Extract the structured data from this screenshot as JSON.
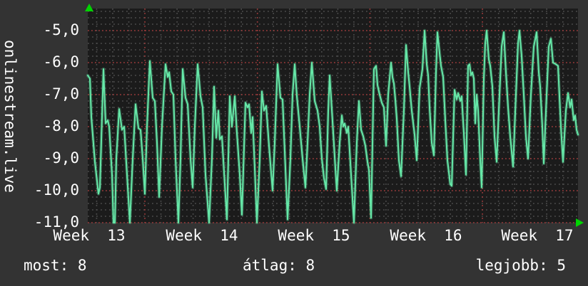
{
  "window": {
    "kind": "monitoring-graph",
    "bg_color": "#333333",
    "plot_bg_color": "#1b1b1b",
    "text_color": "#ffffff"
  },
  "vertical_axis_title": "onlinestream.live",
  "footer": {
    "current": "most: 8",
    "average": "átlag: 8",
    "best": "legjobb: 5"
  },
  "icons": {
    "y_axis_arrow": "up-arrow",
    "x_axis_arrow": "right-arrow",
    "arrow_color": "#00d400"
  },
  "chart_data": {
    "type": "line",
    "title": "onlinestream.live",
    "xlabel": "",
    "ylabel": "",
    "legend_position": "none",
    "grid": {
      "on": true,
      "minor_color": "#4e4e4e",
      "major_color": "#a03c3c"
    },
    "y_axis": {
      "tick_labels": [
        "-5,0",
        "-6,0",
        "-7,0",
        "-8,0",
        "-9,0",
        "-10,0",
        "-11,0"
      ],
      "tick_values": [
        -5,
        -6,
        -7,
        -8,
        -9,
        -10,
        -11
      ],
      "minor_step": 0.2,
      "range_top": -4.31,
      "range_bottom": -11.0
    },
    "x_axis": {
      "tick_labels": [
        "Week  13",
        "Week  14",
        "Week  15",
        "Week  16",
        "Week  17"
      ],
      "minor_grid": "daily",
      "major_grid": "weekly"
    },
    "series": [
      {
        "name": "onlinestream.live",
        "color": "#66e8a8",
        "x_unit": "screen-px (plot spans 123..810, one day ≈ 22.5px)",
        "y_unit": "plotted value (negated ms)",
        "points": [
          [
            123,
            -6.4
          ],
          [
            126,
            -6.5
          ],
          [
            128,
            -7.7
          ],
          [
            133,
            -9.1
          ],
          [
            138,
            -10.1
          ],
          [
            140,
            -9.9
          ],
          [
            145,
            -6.2
          ],
          [
            148,
            -7.9
          ],
          [
            151,
            -7.8
          ],
          [
            153,
            -8.0
          ],
          [
            157,
            -9.5
          ],
          [
            159,
            -11.0
          ],
          [
            161,
            -11.0
          ],
          [
            163,
            -9.0
          ],
          [
            167,
            -7.45
          ],
          [
            171,
            -8.1
          ],
          [
            174,
            -8.0
          ],
          [
            178,
            -9.5
          ],
          [
            182,
            -11.0
          ],
          [
            186,
            -9.0
          ],
          [
            190,
            -7.3
          ],
          [
            194,
            -8.05
          ],
          [
            197,
            -8.1
          ],
          [
            200,
            -9.0
          ],
          [
            203,
            -10.1
          ],
          [
            206,
            -8.0
          ],
          [
            210,
            -5.95
          ],
          [
            214,
            -7.1
          ],
          [
            217,
            -7.2
          ],
          [
            220,
            -8.5
          ],
          [
            223,
            -10.2
          ],
          [
            227,
            -8.0
          ],
          [
            232,
            -6.05
          ],
          [
            235,
            -6.45
          ],
          [
            237,
            -6.3
          ],
          [
            240,
            -6.9
          ],
          [
            243,
            -7.0
          ],
          [
            246,
            -9.0
          ],
          [
            250,
            -11.0
          ],
          [
            253,
            -9.0
          ],
          [
            256,
            -6.2
          ],
          [
            260,
            -7.1
          ],
          [
            263,
            -7.3
          ],
          [
            267,
            -9.0
          ],
          [
            270,
            -9.9
          ],
          [
            273,
            -8.0
          ],
          [
            277,
            -6.05
          ],
          [
            281,
            -7.05
          ],
          [
            284,
            -7.4
          ],
          [
            288,
            -9.5
          ],
          [
            293,
            -11.0
          ],
          [
            297,
            -9.0
          ],
          [
            300,
            -6.75
          ],
          [
            303,
            -8.35
          ],
          [
            306,
            -7.5
          ],
          [
            308,
            -8.4
          ],
          [
            311,
            -8.3
          ],
          [
            315,
            -9.8
          ],
          [
            318,
            -10.9
          ],
          [
            322,
            -7.05
          ],
          [
            325,
            -8.0
          ],
          [
            329,
            -7.05
          ],
          [
            332,
            -8.2
          ],
          [
            336,
            -9.5
          ],
          [
            339,
            -10.75
          ],
          [
            344,
            -7.25
          ],
          [
            347,
            -7.4
          ],
          [
            349,
            -7.3
          ],
          [
            352,
            -8.2
          ],
          [
            354,
            -7.7
          ],
          [
            357,
            -9.3
          ],
          [
            360,
            -11.0
          ],
          [
            364,
            -9.0
          ],
          [
            367,
            -6.9
          ],
          [
            370,
            -7.5
          ],
          [
            373,
            -7.35
          ],
          [
            377,
            -8.6
          ],
          [
            382,
            -10.0
          ],
          [
            385,
            -8.5
          ],
          [
            389,
            -6.05
          ],
          [
            393,
            -7.1
          ],
          [
            396,
            -7.15
          ],
          [
            400,
            -9.3
          ],
          [
            403,
            -10.9
          ],
          [
            407,
            -9.0
          ],
          [
            410,
            -7.0
          ],
          [
            413,
            -6.05
          ],
          [
            416,
            -7.05
          ],
          [
            420,
            -8.0
          ],
          [
            424,
            -9.0
          ],
          [
            428,
            -9.9
          ],
          [
            431,
            -8.5
          ],
          [
            434,
            -7.0
          ],
          [
            437,
            -6.0
          ],
          [
            441,
            -7.2
          ],
          [
            445,
            -7.5
          ],
          [
            448,
            -8.0
          ],
          [
            451,
            -9.0
          ],
          [
            454,
            -9.6
          ],
          [
            457,
            -9.95
          ],
          [
            460,
            -7.5
          ],
          [
            462,
            -6.4
          ],
          [
            464,
            -7.1
          ],
          [
            467,
            -8.2
          ],
          [
            470,
            -9.3
          ],
          [
            472,
            -10.0
          ],
          [
            476,
            -8.5
          ],
          [
            479,
            -7.65
          ],
          [
            481,
            -8.0
          ],
          [
            483,
            -7.9
          ],
          [
            486,
            -8.2
          ],
          [
            488,
            -8.0
          ],
          [
            492,
            -9.5
          ],
          [
            496,
            -11.0
          ],
          [
            500,
            -8.5
          ],
          [
            503,
            -7.2
          ],
          [
            506,
            -8.1
          ],
          [
            509,
            -8.3
          ],
          [
            512,
            -8.6
          ],
          [
            515,
            -9.1
          ],
          [
            517,
            -9.35
          ],
          [
            520,
            -10.85
          ],
          [
            524,
            -6.2
          ],
          [
            527,
            -6.1
          ],
          [
            529,
            -6.7
          ],
          [
            532,
            -7.0
          ],
          [
            535,
            -7.25
          ],
          [
            538,
            -7.4
          ],
          [
            541,
            -8.6
          ],
          [
            544,
            -7.0
          ],
          [
            548,
            -6.0
          ],
          [
            550,
            -6.45
          ],
          [
            552,
            -6.65
          ],
          [
            554,
            -7.15
          ],
          [
            556,
            -7.75
          ],
          [
            559,
            -9.05
          ],
          [
            562,
            -9.55
          ],
          [
            566,
            -7.5
          ],
          [
            569,
            -5.45
          ],
          [
            572,
            -6.3
          ],
          [
            574,
            -6.75
          ],
          [
            577,
            -7.5
          ],
          [
            581,
            -8.25
          ],
          [
            584,
            -9.05
          ],
          [
            588,
            -6.8
          ],
          [
            592,
            -6.2
          ],
          [
            595,
            -5.0
          ],
          [
            598,
            -6.05
          ],
          [
            600,
            -6.4
          ],
          [
            602,
            -7.4
          ],
          [
            605,
            -8.5
          ],
          [
            608,
            -8.9
          ],
          [
            611,
            -6.3
          ],
          [
            613,
            -5.05
          ],
          [
            616,
            -5.7
          ],
          [
            618,
            -6.1
          ],
          [
            621,
            -6.45
          ],
          [
            624,
            -7.8
          ],
          [
            627,
            -9.05
          ],
          [
            631,
            -9.8
          ],
          [
            633,
            -9.85
          ],
          [
            637,
            -6.85
          ],
          [
            640,
            -7.15
          ],
          [
            642,
            -6.95
          ],
          [
            645,
            -7.2
          ],
          [
            647,
            -7.05
          ],
          [
            650,
            -8.2
          ],
          [
            653,
            -9.5
          ],
          [
            656,
            -6.1
          ],
          [
            658,
            -6.05
          ],
          [
            660,
            -6.4
          ],
          [
            662,
            -6.3
          ],
          [
            664,
            -6.5
          ],
          [
            666,
            -7.9
          ],
          [
            668,
            -7.0
          ],
          [
            670,
            -7.5
          ],
          [
            673,
            -9.05
          ],
          [
            675,
            -9.9
          ],
          [
            678,
            -6.5
          ],
          [
            680,
            -5.4
          ],
          [
            682,
            -5.0
          ],
          [
            685,
            -5.9
          ],
          [
            687,
            -6.1
          ],
          [
            690,
            -6.75
          ],
          [
            693,
            -8.3
          ],
          [
            696,
            -9.1
          ],
          [
            699,
            -7.5
          ],
          [
            703,
            -5.5
          ],
          [
            706,
            -5.05
          ],
          [
            709,
            -6.3
          ],
          [
            712,
            -7.4
          ],
          [
            715,
            -8.3
          ],
          [
            719,
            -9.25
          ],
          [
            723,
            -7.0
          ],
          [
            726,
            -5.4
          ],
          [
            728,
            -5.0
          ],
          [
            731,
            -5.8
          ],
          [
            734,
            -7.0
          ],
          [
            737,
            -8.3
          ],
          [
            740,
            -9.0
          ],
          [
            744,
            -7.0
          ],
          [
            748,
            -5.5
          ],
          [
            752,
            -5.05
          ],
          [
            755,
            -6.3
          ],
          [
            757,
            -6.75
          ],
          [
            760,
            -8.0
          ],
          [
            762,
            -9.15
          ],
          [
            766,
            -7.0
          ],
          [
            769,
            -5.5
          ],
          [
            772,
            -5.25
          ],
          [
            775,
            -6.0
          ],
          [
            779,
            -6.05
          ],
          [
            782,
            -6.1
          ],
          [
            786,
            -8.0
          ],
          [
            789,
            -9.1
          ],
          [
            793,
            -7.5
          ],
          [
            796,
            -6.95
          ],
          [
            799,
            -7.4
          ],
          [
            801,
            -7.15
          ],
          [
            804,
            -7.8
          ],
          [
            806,
            -7.65
          ],
          [
            808,
            -8.1
          ],
          [
            810,
            -8.25
          ]
        ]
      }
    ]
  }
}
